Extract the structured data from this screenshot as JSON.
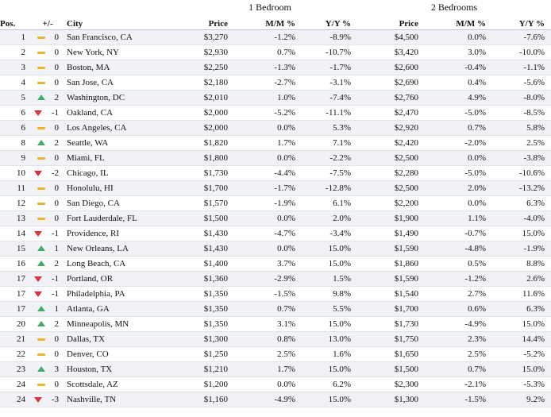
{
  "groups": {
    "one_bedroom": "1 Bedroom",
    "two_bedrooms": "2 Bedrooms"
  },
  "columns": {
    "pos": "Pos.",
    "change": "+/-",
    "city": "City",
    "price_1br": "Price",
    "mm_1br": "M/M %",
    "yy_1br": "Y/Y %",
    "price_2br": "Price",
    "mm_2br": "M/M %",
    "yy_2br": "Y/Y %"
  },
  "colors": {
    "up": "#3fae6a",
    "down": "#d9343a",
    "flat": "#f3b22c",
    "row_alt": "#f0f2f6"
  },
  "rows": [
    {
      "pos": "1",
      "trend": "flat",
      "change": "0",
      "city": "San Francisco, CA",
      "price1": "$3,270",
      "mm1": "-1.2%",
      "yy1": "-8.9%",
      "price2": "$4,500",
      "mm2": "0.0%",
      "yy2": "-7.6%"
    },
    {
      "pos": "2",
      "trend": "flat",
      "change": "0",
      "city": "New York, NY",
      "price1": "$2,930",
      "mm1": "0.7%",
      "yy1": "-10.7%",
      "price2": "$3,420",
      "mm2": "3.0%",
      "yy2": "-10.0%"
    },
    {
      "pos": "3",
      "trend": "flat",
      "change": "0",
      "city": "Boston, MA",
      "price1": "$2,250",
      "mm1": "-1.3%",
      "yy1": "-1.7%",
      "price2": "$2,600",
      "mm2": "-0.4%",
      "yy2": "-1.1%"
    },
    {
      "pos": "4",
      "trend": "flat",
      "change": "0",
      "city": "San Jose, CA",
      "price1": "$2,180",
      "mm1": "-2.7%",
      "yy1": "-3.1%",
      "price2": "$2,690",
      "mm2": "0.4%",
      "yy2": "-5.6%"
    },
    {
      "pos": "5",
      "trend": "up",
      "change": "2",
      "city": "Washington, DC",
      "price1": "$2,010",
      "mm1": "1.0%",
      "yy1": "-7.4%",
      "price2": "$2,760",
      "mm2": "4.9%",
      "yy2": "-8.0%"
    },
    {
      "pos": "6",
      "trend": "down",
      "change": "-1",
      "city": "Oakland, CA",
      "price1": "$2,000",
      "mm1": "-5.2%",
      "yy1": "-11.1%",
      "price2": "$2,470",
      "mm2": "-5.0%",
      "yy2": "-8.5%"
    },
    {
      "pos": "6",
      "trend": "flat",
      "change": "0",
      "city": "Los Angeles, CA",
      "price1": "$2,000",
      "mm1": "0.0%",
      "yy1": "5.3%",
      "price2": "$2,920",
      "mm2": "0.7%",
      "yy2": "5.8%"
    },
    {
      "pos": "8",
      "trend": "up",
      "change": "2",
      "city": "Seattle, WA",
      "price1": "$1,820",
      "mm1": "1.7%",
      "yy1": "7.1%",
      "price2": "$2,420",
      "mm2": "-2.0%",
      "yy2": "2.5%"
    },
    {
      "pos": "9",
      "trend": "flat",
      "change": "0",
      "city": "Miami, FL",
      "price1": "$1,800",
      "mm1": "0.0%",
      "yy1": "-2.2%",
      "price2": "$2,500",
      "mm2": "0.0%",
      "yy2": "-3.8%"
    },
    {
      "pos": "10",
      "trend": "down",
      "change": "-2",
      "city": "Chicago, IL",
      "price1": "$1,730",
      "mm1": "-4.4%",
      "yy1": "-7.5%",
      "price2": "$2,280",
      "mm2": "-5.0%",
      "yy2": "-10.6%"
    },
    {
      "pos": "11",
      "trend": "flat",
      "change": "0",
      "city": "Honolulu, HI",
      "price1": "$1,700",
      "mm1": "-1.7%",
      "yy1": "-12.8%",
      "price2": "$2,500",
      "mm2": "2.0%",
      "yy2": "-13.2%"
    },
    {
      "pos": "12",
      "trend": "flat",
      "change": "0",
      "city": "San Diego, CA",
      "price1": "$1,570",
      "mm1": "-1.9%",
      "yy1": "6.1%",
      "price2": "$2,200",
      "mm2": "0.0%",
      "yy2": "6.3%"
    },
    {
      "pos": "13",
      "trend": "flat",
      "change": "0",
      "city": "Fort Lauderdale, FL",
      "price1": "$1,500",
      "mm1": "0.0%",
      "yy1": "2.0%",
      "price2": "$1,900",
      "mm2": "1.1%",
      "yy2": "-4.0%"
    },
    {
      "pos": "14",
      "trend": "down",
      "change": "-1",
      "city": "Providence, RI",
      "price1": "$1,430",
      "mm1": "-4.7%",
      "yy1": "-3.4%",
      "price2": "$1,490",
      "mm2": "-0.7%",
      "yy2": "15.0%"
    },
    {
      "pos": "15",
      "trend": "up",
      "change": "1",
      "city": "New Orleans, LA",
      "price1": "$1,430",
      "mm1": "0.0%",
      "yy1": "15.0%",
      "price2": "$1,590",
      "mm2": "-4.8%",
      "yy2": "-1.9%"
    },
    {
      "pos": "16",
      "trend": "up",
      "change": "2",
      "city": "Long Beach, CA",
      "price1": "$1,400",
      "mm1": "3.7%",
      "yy1": "15.0%",
      "price2": "$1,860",
      "mm2": "0.5%",
      "yy2": "8.8%"
    },
    {
      "pos": "17",
      "trend": "down",
      "change": "-1",
      "city": "Portland, OR",
      "price1": "$1,360",
      "mm1": "-2.9%",
      "yy1": "1.5%",
      "price2": "$1,590",
      "mm2": "-1.2%",
      "yy2": "2.6%"
    },
    {
      "pos": "17",
      "trend": "down",
      "change": "-1",
      "city": "Philadelphia, PA",
      "price1": "$1,350",
      "mm1": "-1.5%",
      "yy1": "9.8%",
      "price2": "$1,540",
      "mm2": "2.7%",
      "yy2": "11.6%"
    },
    {
      "pos": "17",
      "trend": "up",
      "change": "1",
      "city": "Atlanta, GA",
      "price1": "$1,350",
      "mm1": "0.7%",
      "yy1": "5.5%",
      "price2": "$1,700",
      "mm2": "0.6%",
      "yy2": "6.3%"
    },
    {
      "pos": "20",
      "trend": "up",
      "change": "2",
      "city": "Minneapolis, MN",
      "price1": "$1,350",
      "mm1": "3.1%",
      "yy1": "15.0%",
      "price2": "$1,730",
      "mm2": "-4.9%",
      "yy2": "15.0%"
    },
    {
      "pos": "21",
      "trend": "flat",
      "change": "0",
      "city": "Dallas, TX",
      "price1": "$1,300",
      "mm1": "0.8%",
      "yy1": "13.0%",
      "price2": "$1,750",
      "mm2": "2.3%",
      "yy2": "14.4%"
    },
    {
      "pos": "22",
      "trend": "flat",
      "change": "0",
      "city": "Denver, CO",
      "price1": "$1,250",
      "mm1": "2.5%",
      "yy1": "1.6%",
      "price2": "$1,650",
      "mm2": "2.5%",
      "yy2": "-5.2%"
    },
    {
      "pos": "23",
      "trend": "up",
      "change": "3",
      "city": "Houston, TX",
      "price1": "$1,210",
      "mm1": "1.7%",
      "yy1": "15.0%",
      "price2": "$1,500",
      "mm2": "0.7%",
      "yy2": "15.0%"
    },
    {
      "pos": "24",
      "trend": "flat",
      "change": "0",
      "city": "Scottsdale, AZ",
      "price1": "$1,200",
      "mm1": "0.0%",
      "yy1": "6.2%",
      "price2": "$2,300",
      "mm2": "-2.1%",
      "yy2": "-5.3%"
    },
    {
      "pos": "24",
      "trend": "down",
      "change": "-3",
      "city": "Nashville, TN",
      "price1": "$1,160",
      "mm1": "-4.9%",
      "yy1": "15.0%",
      "price2": "$1,300",
      "mm2": "-1.5%",
      "yy2": "9.2%"
    }
  ]
}
